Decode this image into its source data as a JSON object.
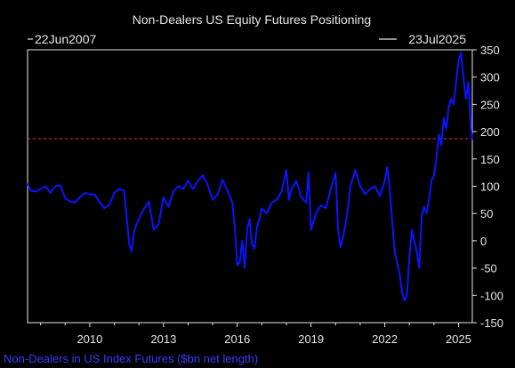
{
  "chart_data": {
    "type": "line",
    "title": "Non-Dealers US Equity Futures Positioning",
    "date_start_label": "22Jun2007",
    "date_end_label": "23Jul2025",
    "legend_label": "Non-Dealers in US Index Futures ($bn net length)",
    "xlim": [
      2007.47,
      2025.56
    ],
    "ylim": [
      -150,
      350
    ],
    "x_ticks": [
      2010,
      2013,
      2016,
      2019,
      2022,
      2025
    ],
    "y_ticks": [
      -150,
      -100,
      -50,
      0,
      50,
      100,
      150,
      200,
      250,
      300,
      350
    ],
    "reference_line": {
      "value": 187,
      "color": "#e03030",
      "style": "dashed"
    },
    "grid": false,
    "legend_position": "bottom-left",
    "colors": {
      "series": "#0a14ff",
      "background": "#000000",
      "text": "#e6e6e6",
      "legend_text": "#3a3aff"
    },
    "series": [
      {
        "x": [
          2007.47,
          2007.6,
          2007.8,
          2008.0,
          2008.2,
          2008.4,
          2008.6,
          2008.8,
          2009.0,
          2009.2,
          2009.4,
          2009.6,
          2009.8,
          2010.0,
          2010.2,
          2010.4,
          2010.6,
          2010.8,
          2011.0,
          2011.2,
          2011.4,
          2011.6,
          2011.7,
          2011.8,
          2011.9,
          2012.0,
          2012.2,
          2012.4,
          2012.6,
          2012.8,
          2013.0,
          2013.2,
          2013.4,
          2013.6,
          2013.8,
          2014.0,
          2014.2,
          2014.4,
          2014.6,
          2014.8,
          2015.0,
          2015.2,
          2015.4,
          2015.6,
          2015.8,
          2015.9,
          2016.0,
          2016.1,
          2016.2,
          2016.3,
          2016.4,
          2016.5,
          2016.6,
          2016.7,
          2016.8,
          2016.9,
          2017.0,
          2017.2,
          2017.4,
          2017.6,
          2017.8,
          2018.0,
          2018.1,
          2018.2,
          2018.4,
          2018.6,
          2018.8,
          2018.9,
          2019.0,
          2019.2,
          2019.4,
          2019.6,
          2019.8,
          2020.0,
          2020.1,
          2020.2,
          2020.3,
          2020.4,
          2020.5,
          2020.6,
          2020.8,
          2021.0,
          2021.2,
          2021.4,
          2021.6,
          2021.8,
          2022.0,
          2022.1,
          2022.2,
          2022.4,
          2022.6,
          2022.7,
          2022.8,
          2022.9,
          2023.0,
          2023.1,
          2023.2,
          2023.3,
          2023.4,
          2023.5,
          2023.6,
          2023.7,
          2023.8,
          2023.9,
          2024.0,
          2024.1,
          2024.2,
          2024.3,
          2024.4,
          2024.5,
          2024.6,
          2024.7,
          2024.8,
          2024.9,
          2025.0,
          2025.1,
          2025.2,
          2025.3,
          2025.4,
          2025.5,
          2025.56
        ],
        "y": [
          105,
          92,
          90,
          95,
          100,
          88,
          100,
          102,
          78,
          72,
          70,
          80,
          88,
          85,
          85,
          70,
          60,
          66,
          88,
          95,
          92,
          -5,
          -20,
          15,
          30,
          40,
          58,
          72,
          20,
          30,
          80,
          62,
          90,
          100,
          95,
          110,
          95,
          110,
          120,
          102,
          75,
          85,
          112,
          92,
          70,
          25,
          -45,
          -40,
          0,
          -50,
          20,
          40,
          -5,
          -15,
          25,
          40,
          60,
          50,
          70,
          75,
          90,
          130,
          75,
          95,
          110,
          80,
          70,
          125,
          20,
          50,
          65,
          60,
          95,
          125,
          20,
          -12,
          5,
          30,
          58,
          100,
          130,
          100,
          85,
          95,
          100,
          82,
          110,
          135,
          95,
          -20,
          -60,
          -95,
          -110,
          -100,
          -30,
          20,
          0,
          -20,
          -50,
          45,
          62,
          50,
          75,
          110,
          120,
          150,
          195,
          175,
          225,
          205,
          245,
          260,
          250,
          290,
          330,
          345,
          300,
          260,
          290,
          210,
          185
        ]
      }
    ]
  }
}
